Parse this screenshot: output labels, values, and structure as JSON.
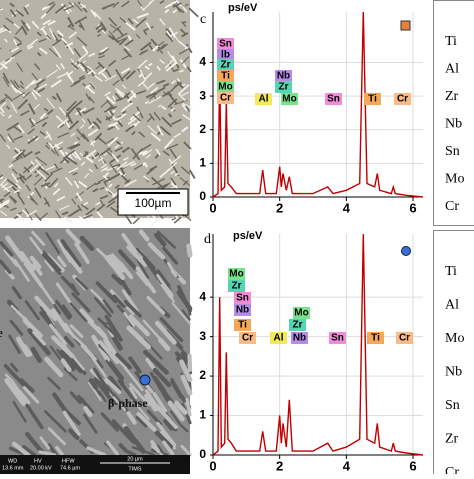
{
  "images": [
    {
      "scale_bar": "100µm"
    },
    {
      "partial_label": "e",
      "label": "β-phase",
      "info_headers": [
        "WD",
        "HV",
        "HFW"
      ],
      "info_values": [
        "13.6 mm",
        "20.00 kV",
        "74.6 µm"
      ],
      "scale_bar": "20 µm",
      "logo": "TIMS"
    }
  ],
  "chart_data": [
    {
      "type": "line",
      "panel_label": "c",
      "y_label": "ps/eV",
      "color": "#c00000",
      "grid": true,
      "x": [
        0,
        0.15,
        0.2,
        0.25,
        0.35,
        0.4,
        0.45,
        0.55,
        0.7,
        1.0,
        1.4,
        1.49,
        1.58,
        1.9,
        2.0,
        2.05,
        2.1,
        2.2,
        2.29,
        2.38,
        2.6,
        3.0,
        3.44,
        3.6,
        4.0,
        4.4,
        4.51,
        4.62,
        4.85,
        4.93,
        5.0,
        5.35,
        5.41,
        5.47,
        5.8,
        6.3
      ],
      "values": [
        0,
        0.1,
        3.8,
        0.2,
        0.3,
        2.8,
        0.4,
        0.3,
        0.1,
        0.1,
        0.1,
        0.8,
        0.1,
        0.1,
        0.9,
        0.3,
        0.7,
        0.2,
        0.6,
        0.1,
        0.1,
        0.1,
        0.3,
        0.1,
        0.2,
        0.4,
        5.5,
        0.4,
        0.3,
        0.7,
        0.2,
        0.1,
        0.3,
        0.1,
        0.05,
        0
      ],
      "xlim": [
        0,
        6.3
      ],
      "xticks": [
        0,
        2,
        4,
        6
      ],
      "ylim": [
        0,
        5.5
      ],
      "yticks": [
        0,
        1,
        2,
        3,
        4
      ],
      "annotations": [
        {
          "text": "Sn",
          "color": "#f08cd8"
        },
        {
          "text": "lb",
          "color": "#b58ce8"
        },
        {
          "text": "Zr",
          "color": "#54d6b4"
        },
        {
          "text": "Ti",
          "color": "#f5a85a"
        },
        {
          "text": "Mo",
          "color": "#78e48a"
        },
        {
          "text": "Cr",
          "color": "#f8bb88"
        },
        {
          "text": "Nb",
          "color": "#b58ce8"
        },
        {
          "text": "Zr",
          "color": "#54d6b4"
        },
        {
          "text": "Al",
          "color": "#f2ea5a"
        },
        {
          "text": "Mo",
          "color": "#78e48a"
        },
        {
          "text": "Sn",
          "color": "#f08cd8"
        },
        {
          "text": "Ti",
          "color": "#f5a85a"
        },
        {
          "text": "Cr",
          "color": "#f8bb88"
        }
      ]
    },
    {
      "type": "line",
      "panel_label": "d",
      "y_label": "ps/eV",
      "color": "#c00000",
      "grid": true,
      "x": [
        0,
        0.15,
        0.2,
        0.25,
        0.35,
        0.4,
        0.45,
        0.55,
        0.7,
        1.0,
        1.4,
        1.49,
        1.58,
        1.9,
        2.0,
        2.05,
        2.1,
        2.2,
        2.29,
        2.38,
        2.6,
        3.0,
        3.44,
        3.6,
        4.0,
        4.4,
        4.51,
        4.62,
        4.85,
        4.93,
        5.0,
        5.35,
        5.41,
        5.47,
        5.8,
        6.3
      ],
      "values": [
        0,
        0.1,
        4.0,
        0.2,
        0.3,
        2.6,
        0.4,
        0.3,
        0.1,
        0.1,
        0.1,
        0.6,
        0.1,
        0.1,
        1.0,
        0.3,
        0.8,
        0.2,
        1.4,
        0.1,
        0.1,
        0.1,
        0.3,
        0.1,
        0.2,
        0.4,
        5.6,
        0.4,
        0.3,
        0.8,
        0.2,
        0.1,
        0.3,
        0.1,
        0.05,
        0
      ],
      "xlim": [
        0,
        6.3
      ],
      "xticks": [
        0,
        2,
        4,
        6
      ],
      "ylim": [
        0,
        5.6
      ],
      "yticks": [
        0,
        1,
        2,
        3,
        4
      ],
      "annotations": [
        {
          "text": "Mo",
          "color": "#78e48a"
        },
        {
          "text": "Zr",
          "color": "#54d6b4"
        },
        {
          "text": "Sn",
          "color": "#f08cd8"
        },
        {
          "text": "Nb",
          "color": "#b58ce8"
        },
        {
          "text": "Ti",
          "color": "#f5a85a"
        },
        {
          "text": "Cr",
          "color": "#f8bb88"
        },
        {
          "text": "Mo",
          "color": "#78e48a"
        },
        {
          "text": "Zr",
          "color": "#54d6b4"
        },
        {
          "text": "Al",
          "color": "#f2ea5a"
        },
        {
          "text": "Nb",
          "color": "#b58ce8"
        },
        {
          "text": "Sn",
          "color": "#f08cd8"
        },
        {
          "text": "Ti",
          "color": "#f5a85a"
        },
        {
          "text": "Cr",
          "color": "#f8bb88"
        }
      ]
    }
  ],
  "element_lists": [
    [
      "Ti",
      "Al",
      "Zr",
      "Nb",
      "Sn",
      "Mo",
      "Cr"
    ],
    [
      "Ti",
      "Al",
      "Mo",
      "Nb",
      "Sn",
      "Zr",
      "Cr"
    ]
  ]
}
